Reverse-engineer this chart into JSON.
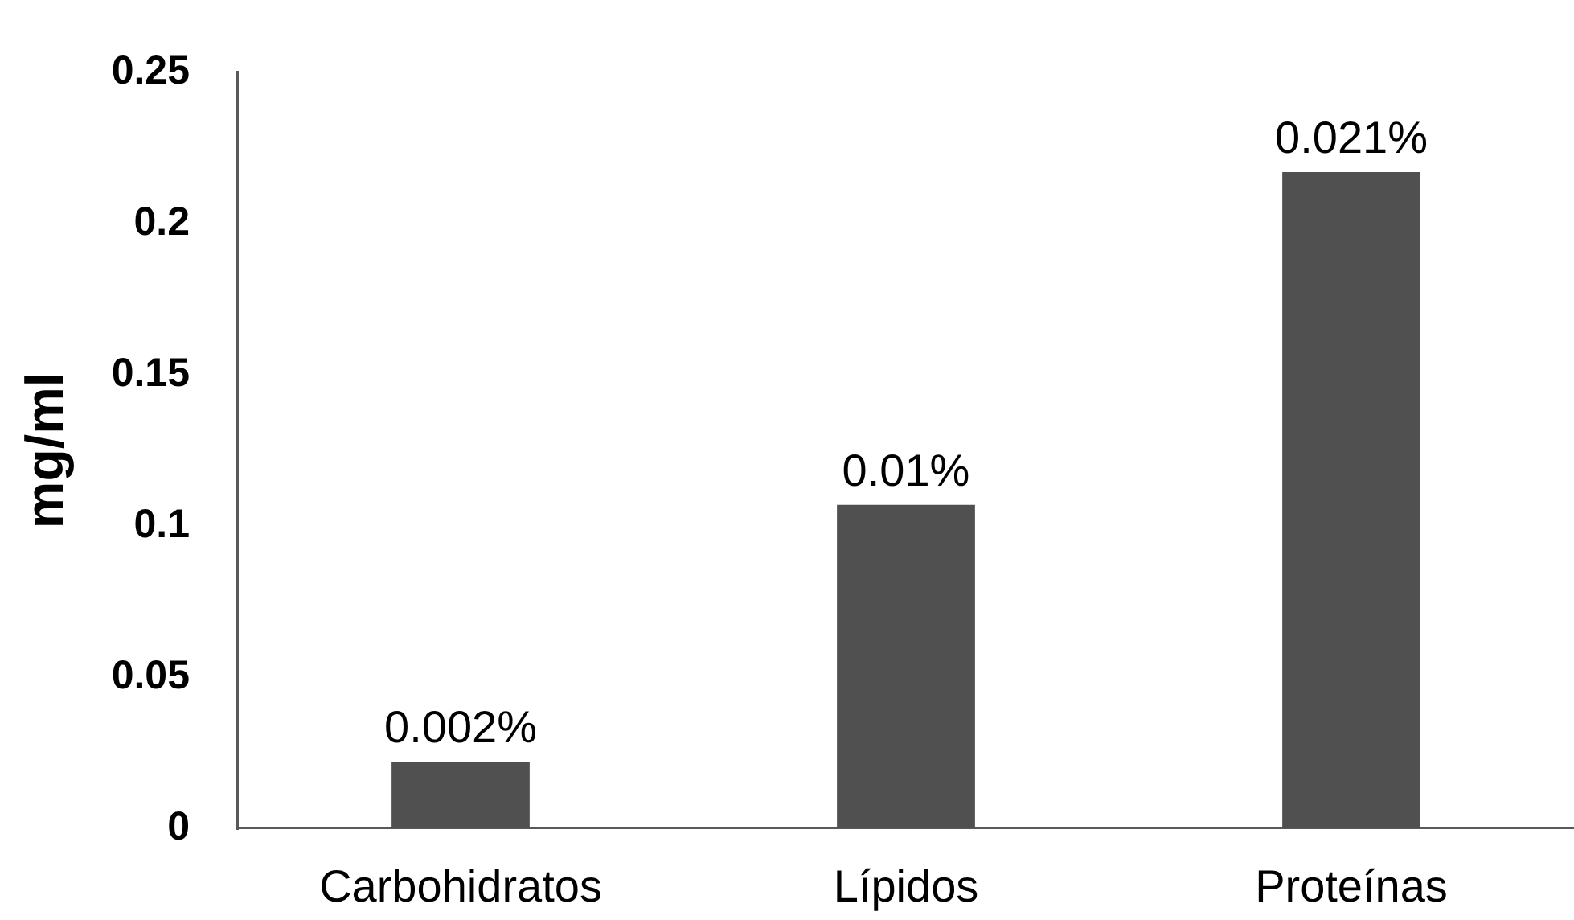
{
  "chart_data": {
    "type": "bar",
    "ylabel": "mg/ml",
    "categories": [
      "Carbohidratos",
      "Lípidos",
      "Proteínas"
    ],
    "values": [
      0.022,
      0.107,
      0.217
    ],
    "color": "#505050",
    "ylim": [
      0,
      0.25
    ],
    "yticks": [
      0,
      0.05,
      0.1,
      0.15,
      0.2,
      0.25
    ],
    "annotations": [
      {
        "text": "0.002%",
        "x": "Carbohidratos",
        "y": 0.022
      },
      {
        "text": "0.01%",
        "x": "Lípidos",
        "y": 0.107
      },
      {
        "text": "0.021%",
        "x": "Proteínas",
        "y": 0.217
      }
    ],
    "grid": false,
    "legend": false
  }
}
